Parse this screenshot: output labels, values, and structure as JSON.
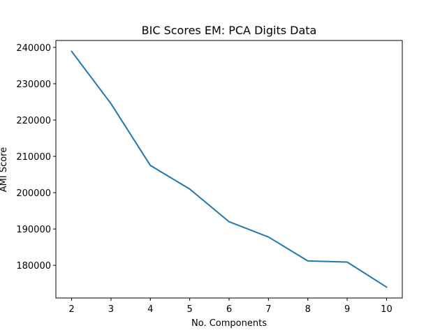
{
  "chart_data": {
    "type": "line",
    "title": "BIC Scores EM: PCA Digits Data",
    "xlabel": "No. Components",
    "ylabel": "AMI Score",
    "x": [
      2,
      3,
      4,
      5,
      6,
      7,
      8,
      9,
      10
    ],
    "series": [
      {
        "values": [
          238900,
          224500,
          207500,
          201000,
          192000,
          187800,
          181200,
          180900,
          174000
        ],
        "color": "#1f77b4"
      }
    ],
    "xlim": [
      1.6,
      10.4
    ],
    "ylim": [
      171000,
      241900
    ],
    "xticks": [
      2,
      3,
      4,
      5,
      6,
      7,
      8,
      9,
      10
    ],
    "yticks": [
      180000,
      190000,
      200000,
      210000,
      220000,
      230000,
      240000
    ],
    "grid": false,
    "legend": "none"
  }
}
